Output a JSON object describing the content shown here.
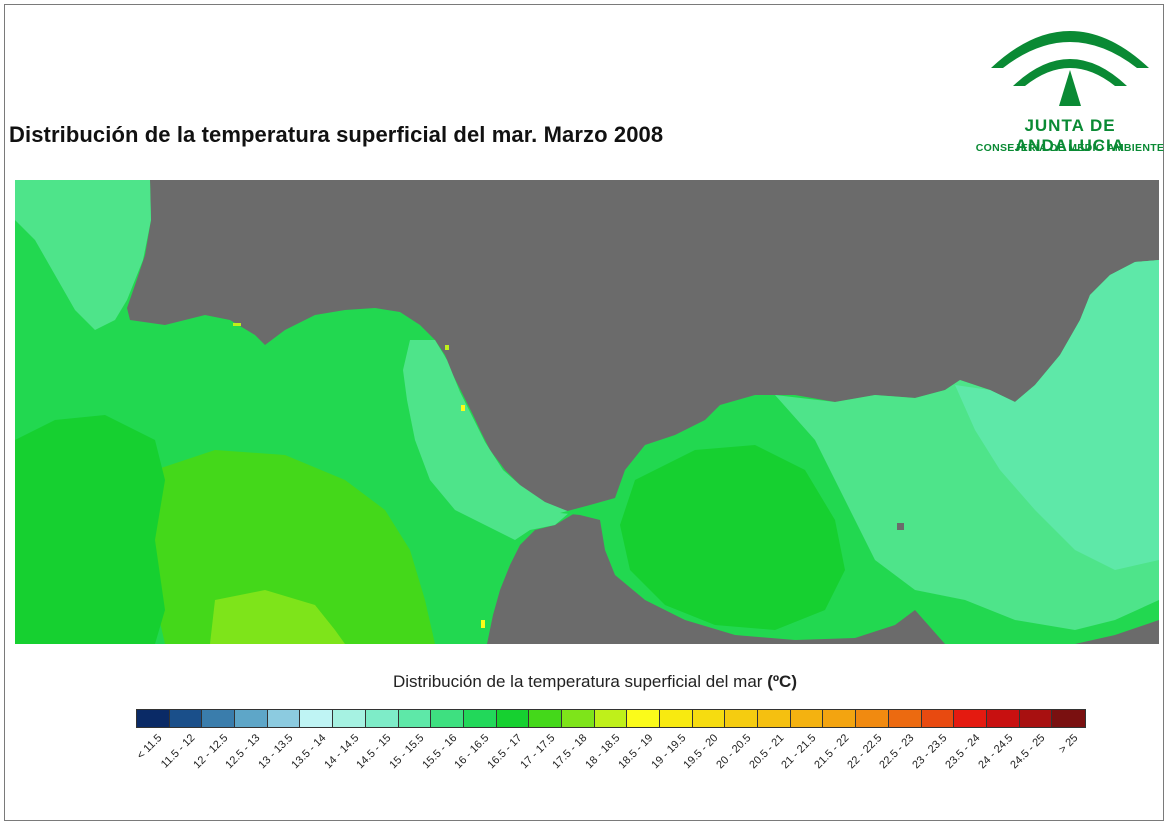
{
  "title": "Distribución de la temperatura superficial del mar. Marzo 2008",
  "logo": {
    "name": "JUNTA DE ANDALUCIA",
    "subtitle": "CONSEJERÍA DE MEDIO AMBIENTE",
    "color": "#0a8a34"
  },
  "map": {
    "land_color": "#6b6b6b"
  },
  "legend": {
    "title_text": "Distribución de la temperatura superficial del mar",
    "unit": "(ºC)",
    "classes": [
      {
        "label": "< 11.5",
        "color": "#0a2a66"
      },
      {
        "label": "11.5 - 12",
        "color": "#1a4f8a"
      },
      {
        "label": "12 - 12.5",
        "color": "#3a7dac"
      },
      {
        "label": "12.5 - 13",
        "color": "#5ea6c8"
      },
      {
        "label": "13 - 13.5",
        "color": "#8ccbe0"
      },
      {
        "label": "13.5 - 14",
        "color": "#bff4f4"
      },
      {
        "label": "14 - 14.5",
        "color": "#a6f2e2"
      },
      {
        "label": "14.5 - 15",
        "color": "#7eecc8"
      },
      {
        "label": "15 - 15.5",
        "color": "#5ee8a8"
      },
      {
        "label": "15.5 - 16",
        "color": "#3ee080"
      },
      {
        "label": "16 - 16.5",
        "color": "#22d85a"
      },
      {
        "label": "16.5 - 17",
        "color": "#16d030"
      },
      {
        "label": "17 - 17.5",
        "color": "#44d81a"
      },
      {
        "label": "17.5 - 18",
        "color": "#7ee41a"
      },
      {
        "label": "18 - 18.5",
        "color": "#bff01a"
      },
      {
        "label": "18.5 - 19",
        "color": "#fbfb1a"
      },
      {
        "label": "19 - 19.5",
        "color": "#f8ea10"
      },
      {
        "label": "19.5 - 20",
        "color": "#f6dc10"
      },
      {
        "label": "20 - 20.5",
        "color": "#f5cc10"
      },
      {
        "label": "20.5 - 21",
        "color": "#f5c010"
      },
      {
        "label": "21 - 21.5",
        "color": "#f4b210"
      },
      {
        "label": "21.5 - 22",
        "color": "#f3a410"
      },
      {
        "label": "22 - 22.5",
        "color": "#f18a10"
      },
      {
        "label": "22.5 - 23",
        "color": "#ec6a10"
      },
      {
        "label": "23 - 23.5",
        "color": "#e84a10"
      },
      {
        "label": "23.5 - 24",
        "color": "#e41a10"
      },
      {
        "label": "24 - 24.5",
        "color": "#c81010"
      },
      {
        "label": "24.5 - 25",
        "color": "#a81010"
      },
      {
        "label": "> 25",
        "color": "#7a1010"
      }
    ]
  }
}
